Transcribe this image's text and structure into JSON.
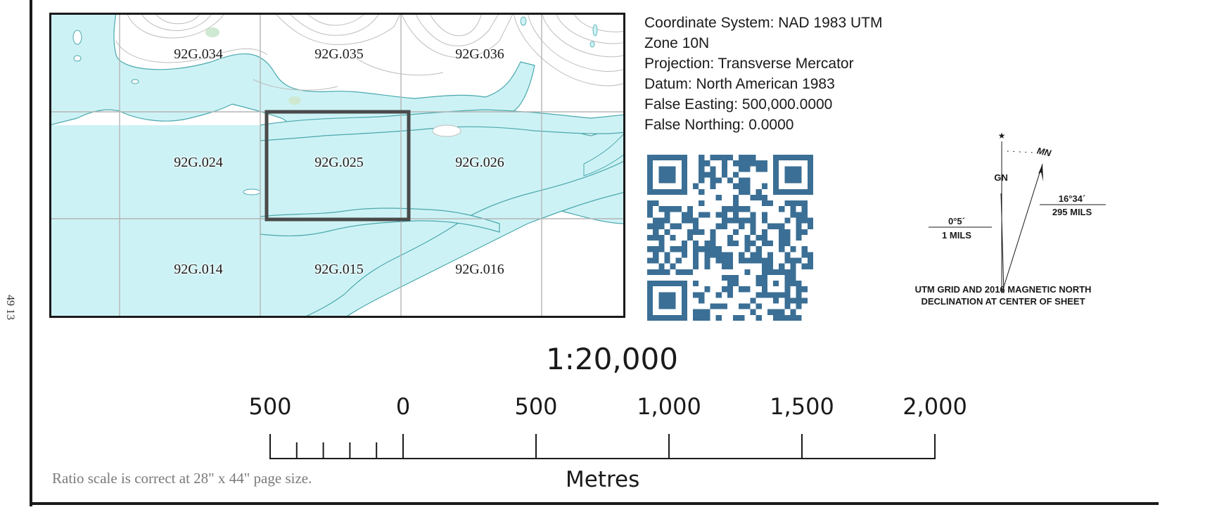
{
  "side_label": "49 13",
  "index_map": {
    "sheets": [
      {
        "id": "92G.034"
      },
      {
        "id": "92G.035"
      },
      {
        "id": "92G.036"
      },
      {
        "id": "92G.024"
      },
      {
        "id": "92G.025",
        "current": true
      },
      {
        "id": "92G.026"
      },
      {
        "id": "92G.014"
      },
      {
        "id": "92G.015"
      },
      {
        "id": "92G.016"
      }
    ],
    "colors": {
      "water": "#cdf2f5",
      "shoreline": "#4aa8ad",
      "grid": "#b5b5b5",
      "contour": "#bdbdbd",
      "current_sheet_outline": "#4a4a4a",
      "vegetation": "#cfe8d2"
    }
  },
  "coordinate_info": {
    "lines": [
      "Coordinate System: NAD 1983 UTM",
      "Zone 10N",
      "Projection: Transverse Mercator",
      "Datum: North American 1983",
      "False Easting: 500,000.0000",
      "False Northing: 0.0000"
    ]
  },
  "qr_code": {
    "color": "#3b6f95"
  },
  "declination": {
    "star_icon": "true-north-star",
    "gn_label": "GN",
    "mn_label": "MN",
    "magnetic_angle": "16°34´",
    "magnetic_mils": "295 MILS",
    "grid_angle": "0°5´",
    "grid_mils": "1 MILS",
    "caption_line1": "UTM GRID AND 2016 MAGNETIC NORTH",
    "caption_line2": "DECLINATION AT CENTER OF SHEET"
  },
  "scale": {
    "ratio": "1:20,000",
    "tick_labels": [
      "500",
      "0",
      "500",
      "1,000",
      "1,500",
      "2,000"
    ],
    "units": "Metres",
    "note": "Ratio scale is correct at 28\" x 44\" page size."
  }
}
